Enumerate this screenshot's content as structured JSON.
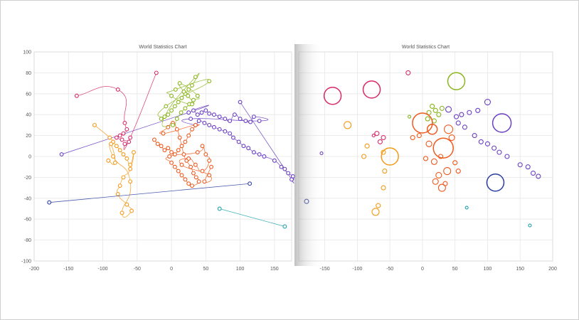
{
  "colors": {
    "purple": "#6a3fc3",
    "orange": "#f59a1b",
    "red_orange": "#ef5a1e",
    "green": "#8ab51c",
    "magenta": "#d82a6a",
    "navy": "#2c3f9f",
    "teal": "#21a3ad",
    "grid": "#e6e6e6",
    "text": "#555555"
  },
  "chart_data": [
    {
      "type": "scatter",
      "title": "World Statistics Chart",
      "xlim": [
        -200,
        175
      ],
      "ylim": [
        -100,
        100
      ],
      "x_ticks": [
        "-200",
        "-150",
        "-100",
        "-50",
        "0",
        "50",
        "100",
        "150"
      ],
      "y_ticks": [
        "100",
        "80",
        "60",
        "40",
        "20",
        "0",
        "-20",
        "-40",
        "-60",
        "-80",
        "-100"
      ],
      "grid": true,
      "connectors": "smooth-curves",
      "series": [
        {
          "color": "purple",
          "points": [
            [
              -160,
              2
            ],
            [
              25,
              42
            ],
            [
              32,
              44
            ],
            [
              38,
              40
            ],
            [
              44,
              42
            ],
            [
              50,
              44
            ],
            [
              55,
              41
            ],
            [
              62,
              40
            ],
            [
              70,
              38
            ],
            [
              78,
              36
            ],
            [
              85,
              34
            ],
            [
              92,
              40
            ],
            [
              100,
              36
            ],
            [
              108,
              34
            ],
            [
              115,
              33
            ],
            [
              120,
              38
            ],
            [
              128,
              34
            ],
            [
              28,
              36
            ],
            [
              35,
              30
            ],
            [
              40,
              34
            ],
            [
              48,
              32
            ],
            [
              55,
              30
            ],
            [
              62,
              28
            ],
            [
              70,
              26
            ],
            [
              78,
              24
            ],
            [
              85,
              22
            ],
            [
              90,
              18
            ],
            [
              98,
              14
            ],
            [
              105,
              10
            ],
            [
              112,
              8
            ],
            [
              120,
              4
            ],
            [
              128,
              2
            ],
            [
              135,
              0
            ],
            [
              150,
              -4
            ],
            [
              160,
              -10
            ],
            [
              170,
              -16
            ],
            [
              177,
              -19
            ],
            [
              175,
              -22
            ],
            [
              165,
              -12
            ],
            [
              100,
              52
            ]
          ]
        },
        {
          "color": "red_orange",
          "points": [
            [
              -25,
              16
            ],
            [
              -20,
              12
            ],
            [
              -15,
              10
            ],
            [
              -10,
              6
            ],
            [
              -5,
              8
            ],
            [
              0,
              4
            ],
            [
              5,
              2
            ],
            [
              10,
              6
            ],
            [
              15,
              10
            ],
            [
              20,
              14
            ],
            [
              25,
              20
            ],
            [
              30,
              26
            ],
            [
              35,
              30
            ],
            [
              -12,
              22
            ],
            [
              -5,
              28
            ],
            [
              2,
              32
            ],
            [
              8,
              26
            ],
            [
              12,
              18
            ],
            [
              18,
              2
            ],
            [
              22,
              -4
            ],
            [
              28,
              -10
            ],
            [
              32,
              -16
            ],
            [
              36,
              -20
            ],
            [
              40,
              -24
            ],
            [
              30,
              -28
            ],
            [
              25,
              -26
            ],
            [
              20,
              -22
            ],
            [
              15,
              -18
            ],
            [
              10,
              -14
            ],
            [
              5,
              -10
            ],
            [
              0,
              -6
            ],
            [
              -3,
              0
            ],
            [
              38,
              4
            ],
            [
              45,
              10
            ],
            [
              50,
              2
            ],
            [
              55,
              -4
            ],
            [
              45,
              -14
            ],
            [
              35,
              -8
            ],
            [
              25,
              -2
            ],
            [
              15,
              -8
            ],
            [
              55,
              -18
            ],
            [
              48,
              -24
            ],
            [
              58,
              -10
            ]
          ]
        },
        {
          "color": "green",
          "points": [
            [
              -5,
              40
            ],
            [
              0,
              44
            ],
            [
              5,
              48
            ],
            [
              10,
              52
            ],
            [
              15,
              56
            ],
            [
              20,
              60
            ],
            [
              25,
              64
            ],
            [
              30,
              68
            ],
            [
              35,
              76
            ],
            [
              -10,
              38
            ],
            [
              2,
              30
            ],
            [
              8,
              36
            ],
            [
              14,
              42
            ],
            [
              20,
              46
            ],
            [
              26,
              50
            ],
            [
              32,
              54
            ],
            [
              38,
              58
            ],
            [
              12,
              70
            ],
            [
              18,
              62
            ],
            [
              24,
              58
            ],
            [
              30,
              50
            ],
            [
              0,
              58
            ],
            [
              6,
              64
            ],
            [
              55,
              72
            ],
            [
              -8,
              48
            ],
            [
              -15,
              36
            ]
          ]
        },
        {
          "color": "orange",
          "points": [
            [
              -112,
              30
            ],
            [
              -90,
              18
            ],
            [
              -85,
              14
            ],
            [
              -80,
              10
            ],
            [
              -75,
              6
            ],
            [
              -70,
              2
            ],
            [
              -65,
              -2
            ],
            [
              -60,
              -8
            ],
            [
              -55,
              4
            ],
            [
              -60,
              -12
            ],
            [
              -70,
              -20
            ],
            [
              -75,
              -28
            ],
            [
              -78,
              -36
            ],
            [
              -65,
              -46
            ],
            [
              -58,
              -52
            ],
            [
              -72,
              -54
            ],
            [
              -60,
              -24
            ],
            [
              -85,
              0
            ],
            [
              -88,
              12
            ],
            [
              -82,
              -6
            ],
            [
              -92,
              -4
            ]
          ]
        },
        {
          "color": "magenta",
          "points": [
            [
              -138,
              58
            ],
            [
              -78,
              64
            ],
            [
              -68,
              32
            ],
            [
              -65,
              26
            ],
            [
              -70,
              22
            ],
            [
              -75,
              20
            ],
            [
              -80,
              18
            ],
            [
              -72,
              16
            ],
            [
              -62,
              14
            ],
            [
              -68,
              12
            ],
            [
              -60,
              18
            ],
            [
              -22,
              80
            ]
          ]
        },
        {
          "color": "navy",
          "points": [
            [
              -178,
              -44
            ],
            [
              114,
              -26
            ]
          ]
        },
        {
          "color": "teal",
          "points": [
            [
              70,
              -50
            ],
            [
              165,
              -67
            ]
          ]
        }
      ]
    },
    {
      "type": "scatter",
      "title": "World Statistics Chart",
      "xlim": [
        -190,
        200
      ],
      "ylim": [
        -100,
        100
      ],
      "x_ticks": [
        "-150",
        "-100",
        "-50",
        "0",
        "50",
        "100",
        "150",
        "200"
      ],
      "grid": true,
      "bubbles": true,
      "series": [
        {
          "color": "magenta",
          "points": [
            [
              -138,
              58,
              12
            ],
            [
              -78,
              64,
              12
            ],
            [
              -22,
              80,
              3
            ],
            [
              -60,
              18,
              3
            ],
            [
              -65,
              14,
              3
            ],
            [
              -70,
              22,
              3
            ],
            [
              -75,
              20,
              2
            ]
          ]
        },
        {
          "color": "orange",
          "points": [
            [
              -115,
              30,
              5
            ],
            [
              -50,
              0,
              12
            ],
            [
              -60,
              4,
              3
            ],
            [
              -58,
              -14,
              3
            ],
            [
              -60,
              -30,
              3
            ],
            [
              -68,
              -47,
              3
            ],
            [
              -72,
              -53,
              5
            ],
            [
              -90,
              0,
              3
            ],
            [
              -85,
              10,
              3
            ]
          ]
        },
        {
          "color": "green",
          "points": [
            [
              52,
              72,
              12
            ],
            [
              10,
              42,
              3
            ],
            [
              15,
              48,
              3
            ],
            [
              20,
              44,
              3
            ],
            [
              25,
              40,
              3
            ],
            [
              30,
              46,
              3
            ],
            [
              8,
              36,
              3
            ],
            [
              18,
              34,
              3
            ],
            [
              -20,
              38,
              2
            ]
          ]
        },
        {
          "color": "red_orange",
          "points": [
            [
              0,
              32,
              14
            ],
            [
              32,
              8,
              14
            ],
            [
              15,
              26,
              7
            ],
            [
              40,
              26,
              6
            ],
            [
              18,
              -5,
              4
            ],
            [
              25,
              -18,
              4
            ],
            [
              38,
              -14,
              5
            ],
            [
              30,
              -30,
              5
            ],
            [
              20,
              -24,
              4
            ],
            [
              10,
              12,
              4
            ],
            [
              45,
              18,
              4
            ],
            [
              -15,
              18,
              3
            ],
            [
              50,
              -6,
              3
            ],
            [
              5,
              -2,
              3
            ],
            [
              35,
              -26,
              3
            ],
            [
              -5,
              20,
              3
            ],
            [
              55,
              -14,
              3
            ],
            [
              28,
              0,
              3
            ]
          ]
        },
        {
          "color": "purple",
          "points": [
            [
              122,
              32,
              13
            ],
            [
              -155,
              3,
              2
            ],
            [
              52,
              38,
              3
            ],
            [
              60,
              40,
              3
            ],
            [
              72,
              42,
              3
            ],
            [
              85,
              44,
              3
            ],
            [
              55,
              32,
              3
            ],
            [
              65,
              28,
              3
            ],
            [
              80,
              20,
              3
            ],
            [
              90,
              14,
              3
            ],
            [
              100,
              12,
              3
            ],
            [
              110,
              8,
              3
            ],
            [
              118,
              4,
              3
            ],
            [
              130,
              0,
              3
            ],
            [
              150,
              -8,
              3
            ],
            [
              162,
              -10,
              3
            ],
            [
              170,
              -16,
              3
            ],
            [
              178,
              -19,
              3
            ],
            [
              100,
              52,
              4
            ],
            [
              40,
              45,
              4
            ]
          ]
        },
        {
          "color": "navy",
          "points": [
            [
              -178,
              -43,
              3
            ],
            [
              112,
              -25,
              12
            ]
          ]
        },
        {
          "color": "teal",
          "points": [
            [
              68,
              -49,
              2
            ],
            [
              165,
              -66,
              2
            ]
          ]
        }
      ]
    }
  ]
}
